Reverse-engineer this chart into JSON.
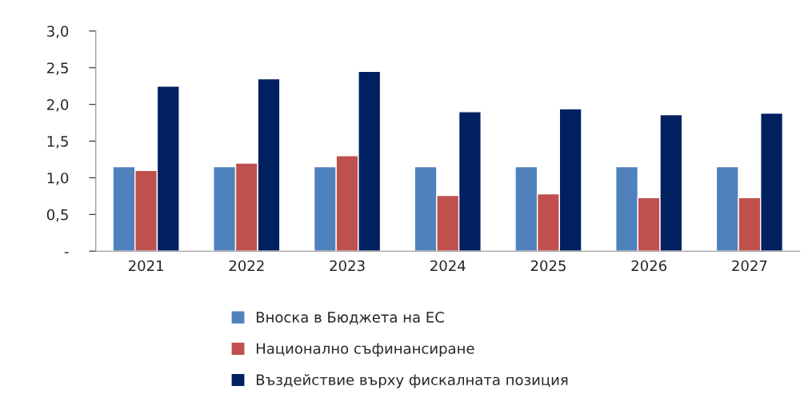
{
  "chart_data": {
    "type": "bar",
    "categories": [
      "2021",
      "2022",
      "2023",
      "2024",
      "2025",
      "2026",
      "2027"
    ],
    "series": [
      {
        "name": "Вноска в Бюджета на ЕС",
        "color": "#4f81bd",
        "values": [
          1.15,
          1.15,
          1.15,
          1.15,
          1.15,
          1.15,
          1.15
        ]
      },
      {
        "name": "Национално съфинансиране",
        "color": "#c0504d",
        "values": [
          1.1,
          1.2,
          1.3,
          0.76,
          0.78,
          0.73,
          0.73
        ]
      },
      {
        "name": "Въздействие върху фискалната позиция",
        "color": "#002060",
        "values": [
          2.25,
          2.35,
          2.45,
          1.9,
          1.94,
          1.86,
          1.88
        ]
      }
    ],
    "ylim": [
      0,
      3.0
    ],
    "yticks": [
      {
        "value": 0,
        "label": "-"
      },
      {
        "value": 0.5,
        "label": "0,5"
      },
      {
        "value": 1.0,
        "label": "1,0"
      },
      {
        "value": 1.5,
        "label": "1,5"
      },
      {
        "value": 2.0,
        "label": "2,0"
      },
      {
        "value": 2.5,
        "label": "2,5"
      },
      {
        "value": 3.0,
        "label": "3,0"
      }
    ],
    "grid": false,
    "legend": "bottom"
  }
}
